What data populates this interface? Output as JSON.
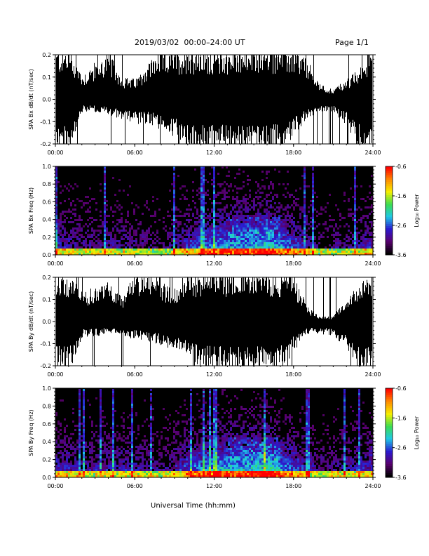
{
  "header": {
    "date_range": "2019/03/02  00:00–24:00 UT",
    "page": "Page 1/1"
  },
  "colors": {
    "waveform": "#000000",
    "background": "#ffffff",
    "spectrogram_colormap": [
      "#000000",
      "#5a0070",
      "#2a1ad0",
      "#1ec8e6",
      "#3cdc50",
      "#f5f000",
      "#ff8c00",
      "#ff0000"
    ]
  },
  "chart_data": [
    {
      "type": "area",
      "name": "bx-waveform",
      "ylabel": "SPA Bx dB/dt (nT/sec)",
      "ylim": [
        -0.2,
        0.2
      ],
      "yticks": [
        "-0.2",
        "-0.1",
        "0.0",
        "0.1",
        "0.2"
      ],
      "xlim": [
        0,
        24
      ],
      "xticks": [
        "00:00",
        "06:00",
        "12:00",
        "18:00",
        "24:00"
      ],
      "envelope": {
        "x_hours": [
          0,
          1,
          2,
          3,
          4,
          5,
          6,
          7,
          8,
          9,
          10,
          11,
          12,
          13,
          14,
          15,
          16,
          17,
          18,
          19,
          20,
          21,
          22,
          23,
          24
        ],
        "upper": [
          0.2,
          0.2,
          0.1,
          0.15,
          0.18,
          0.09,
          0.08,
          0.15,
          0.2,
          0.2,
          0.2,
          0.2,
          0.2,
          0.2,
          0.2,
          0.2,
          0.2,
          0.2,
          0.2,
          0.16,
          0.06,
          0.04,
          0.08,
          0.12,
          0.2
        ],
        "lower": [
          -0.2,
          -0.2,
          -0.05,
          -0.05,
          -0.06,
          -0.08,
          -0.1,
          -0.1,
          -0.12,
          -0.15,
          -0.2,
          -0.2,
          -0.2,
          -0.2,
          -0.2,
          -0.2,
          -0.2,
          -0.2,
          -0.15,
          -0.08,
          -0.05,
          -0.05,
          -0.1,
          -0.2,
          -0.2
        ]
      }
    },
    {
      "type": "heatmap",
      "name": "bx-spectrogram",
      "ylabel": "SPA Bx Freq (Hz)",
      "ylim": [
        0.0,
        1.0
      ],
      "yticks": [
        "0.0",
        "0.2",
        "0.4",
        "0.6",
        "0.8",
        "1.0"
      ],
      "xlim": [
        0,
        24
      ],
      "xticks": [
        "00:00",
        "06:00",
        "12:00",
        "18:00",
        "24:00"
      ],
      "colorbar": {
        "label": "Log₁₀ Power",
        "range": [
          -3.6,
          -0.6
        ],
        "ticks": [
          "-0.6",
          "-1.6",
          "-2.6",
          "-3.6"
        ]
      },
      "activity": {
        "x_hours": [
          0,
          2,
          4,
          6,
          8,
          10,
          12,
          14,
          16,
          18,
          20,
          22,
          24
        ],
        "level": [
          0.5,
          0.35,
          0.4,
          0.35,
          0.25,
          0.55,
          0.8,
          0.85,
          0.95,
          0.6,
          0.25,
          0.35,
          0.5
        ]
      }
    },
    {
      "type": "area",
      "name": "by-waveform",
      "ylabel": "SPA By dB/dt (nT/sec)",
      "ylim": [
        -0.2,
        0.2
      ],
      "yticks": [
        "-0.2",
        "-0.1",
        "0.0",
        "0.1",
        "0.2"
      ],
      "xlim": [
        0,
        24
      ],
      "xticks": [
        "00:00",
        "06:00",
        "12:00",
        "18:00",
        "24:00"
      ],
      "envelope": {
        "x_hours": [
          0,
          1,
          2,
          3,
          4,
          5,
          6,
          7,
          8,
          9,
          10,
          11,
          12,
          13,
          14,
          15,
          16,
          17,
          18,
          19,
          20,
          21,
          22,
          23,
          24
        ],
        "upper": [
          0.2,
          0.2,
          0.12,
          0.14,
          0.16,
          0.1,
          0.2,
          0.2,
          0.16,
          0.14,
          0.2,
          0.2,
          0.2,
          0.2,
          0.2,
          0.2,
          0.2,
          0.2,
          0.2,
          0.06,
          0.02,
          0.02,
          0.1,
          0.15,
          0.2
        ],
        "lower": [
          -0.2,
          -0.2,
          -0.06,
          -0.06,
          -0.05,
          -0.06,
          -0.07,
          -0.08,
          -0.1,
          -0.12,
          -0.15,
          -0.2,
          -0.2,
          -0.2,
          -0.2,
          -0.2,
          -0.2,
          -0.2,
          -0.12,
          -0.05,
          -0.05,
          -0.06,
          -0.1,
          -0.2,
          -0.2
        ]
      }
    },
    {
      "type": "heatmap",
      "name": "by-spectrogram",
      "ylabel": "SPA By Freq (Hz)",
      "ylim": [
        0.0,
        1.0
      ],
      "yticks": [
        "0.0",
        "0.2",
        "0.4",
        "0.6",
        "0.8",
        "1.0"
      ],
      "xlim": [
        0,
        24
      ],
      "xticks": [
        "00:00",
        "06:00",
        "12:00",
        "18:00",
        "24:00"
      ],
      "colorbar": {
        "label": "Log₁₀ Power",
        "range": [
          -3.6,
          -0.6
        ],
        "ticks": [
          "-0.6",
          "-1.6",
          "-2.6",
          "-3.6"
        ]
      },
      "activity": {
        "x_hours": [
          0,
          2,
          4,
          6,
          8,
          10,
          12,
          14,
          16,
          18,
          20,
          22,
          24
        ],
        "level": [
          0.55,
          0.4,
          0.45,
          0.45,
          0.3,
          0.65,
          0.85,
          0.9,
          1.0,
          0.65,
          0.3,
          0.4,
          0.55
        ]
      }
    }
  ],
  "xlabel": "Universal Time (hh:mm)"
}
